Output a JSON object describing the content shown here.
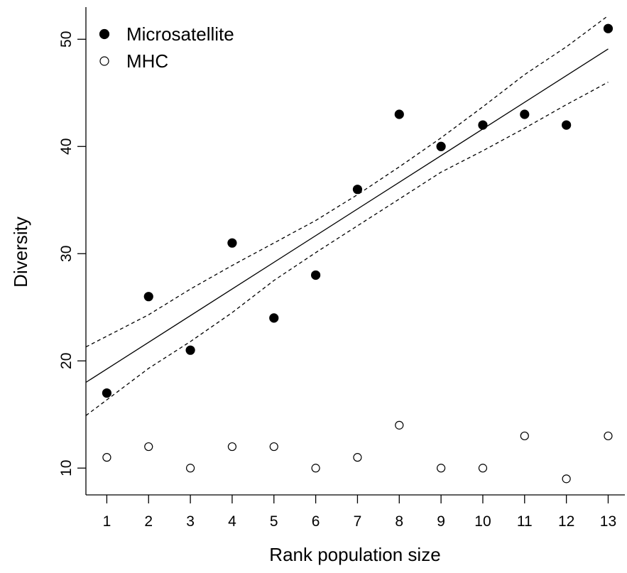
{
  "chart_data": {
    "type": "scatter",
    "title": "",
    "xlabel": "Rank population size",
    "ylabel": "Diversity",
    "xlim": [
      0.5,
      13.4
    ],
    "ylim": [
      7.5,
      53
    ],
    "xticks": [
      1,
      2,
      3,
      4,
      5,
      6,
      7,
      8,
      9,
      10,
      11,
      12,
      13
    ],
    "yticks": [
      10,
      20,
      30,
      40,
      50
    ],
    "grid": false,
    "legend_position": "top-left",
    "series": [
      {
        "name": "Microsatellite",
        "marker": "filled-circle",
        "x": [
          1,
          2,
          3,
          4,
          5,
          6,
          7,
          8,
          9,
          10,
          11,
          12,
          13
        ],
        "y": [
          17,
          26,
          21,
          31,
          24,
          28,
          36,
          43,
          40,
          42,
          43,
          42,
          51
        ]
      },
      {
        "name": "MHC",
        "marker": "open-circle",
        "x": [
          1,
          2,
          3,
          4,
          5,
          6,
          7,
          8,
          9,
          10,
          11,
          12,
          13
        ],
        "y": [
          11,
          12,
          10,
          12,
          12,
          10,
          11,
          14,
          10,
          10,
          13,
          9,
          13
        ]
      }
    ],
    "fit_lines": [
      {
        "style": "solid",
        "x": [
          0.5,
          13
        ],
        "y": [
          18.0,
          49.1
        ]
      },
      {
        "style": "dashed",
        "x": [
          0.5,
          2,
          3,
          4,
          5,
          6,
          7,
          8,
          9,
          10,
          11,
          12,
          13
        ],
        "y": [
          21.3,
          24.3,
          26.7,
          28.9,
          31.0,
          33.1,
          35.5,
          38.1,
          40.8,
          43.7,
          46.7,
          49.3,
          52.2
        ]
      },
      {
        "style": "dashed",
        "x": [
          0.5,
          2,
          3,
          4,
          5,
          6,
          7,
          8,
          9,
          10,
          11,
          12,
          13
        ],
        "y": [
          14.9,
          19.3,
          21.8,
          24.5,
          27.5,
          30.1,
          32.6,
          35.1,
          37.6,
          39.6,
          41.7,
          43.9,
          46.0
        ]
      }
    ]
  },
  "colors": {
    "axis": "#000000",
    "marker_fill": "#000000",
    "background": "#ffffff"
  }
}
